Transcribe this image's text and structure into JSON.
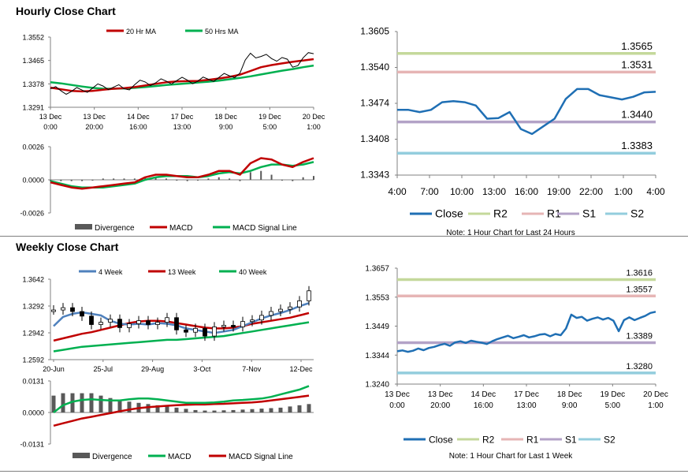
{
  "sections": {
    "hourly": {
      "title": "Hourly Close Chart"
    },
    "weekly": {
      "title": "Weekly Close Chart"
    }
  },
  "colors": {
    "close": "#1f6fb4",
    "r2": "#c4d89b",
    "r1": "#e6b5b5",
    "s1": "#b3a2c7",
    "s2": "#93cddd",
    "ma_short": "#c00000",
    "ma_long": "#00b050",
    "wk4": "#4f81bd",
    "divergence": "#595959"
  },
  "chart_data": [
    {
      "id": "hourly-price",
      "type": "line",
      "title": "",
      "ylim": [
        1.3291,
        1.3552
      ],
      "yticks": [
        "1.3552",
        "1.3465",
        "1.3378",
        "1.3291"
      ],
      "xticks": [
        [
          "13 Dec",
          "0:00"
        ],
        [
          "13 Dec",
          "20:00"
        ],
        [
          "14 Dec",
          "16:00"
        ],
        [
          "17 Dec",
          "13:00"
        ],
        [
          "18 Dec",
          "9:00"
        ],
        [
          "19 Dec",
          "5:00"
        ],
        [
          "20 Dec",
          "1:00"
        ]
      ],
      "legend": [
        "20 Hr MA",
        "50 Hrs MA"
      ],
      "series": [
        {
          "name": "20 Hr MA",
          "color": "#c00000",
          "values": [
            1.3364,
            1.3358,
            1.3352,
            1.335,
            1.3352,
            1.3356,
            1.336,
            1.3362,
            1.3366,
            1.3372,
            1.3378,
            1.3384,
            1.3387,
            1.3388,
            1.3389,
            1.3393,
            1.3398,
            1.3404,
            1.3412,
            1.3426,
            1.344,
            1.3448,
            1.3454,
            1.346,
            1.3465,
            1.347
          ]
        },
        {
          "name": "50 Hrs MA",
          "color": "#00b050",
          "values": [
            1.3384,
            1.338,
            1.3374,
            1.3368,
            1.3363,
            1.336,
            1.336,
            1.3361,
            1.3363,
            1.3366,
            1.337,
            1.3374,
            1.3377,
            1.338,
            1.3383,
            1.3386,
            1.339,
            1.3395,
            1.34,
            1.3406,
            1.3413,
            1.342,
            1.3427,
            1.3433,
            1.344,
            1.3446
          ]
        },
        {
          "name": "Close",
          "color": "#000000",
          "values": [
            1.336,
            1.3352,
            1.335,
            1.3355,
            1.3362,
            1.337,
            1.3366,
            1.336,
            1.3375,
            1.3385,
            1.3382,
            1.3388,
            1.339,
            1.3392,
            1.3388,
            1.3395,
            1.3402,
            1.3408,
            1.3418,
            1.3492,
            1.348,
            1.3472,
            1.3476,
            1.344,
            1.3475,
            1.349
          ]
        }
      ]
    },
    {
      "id": "hourly-macd",
      "type": "line",
      "ylim": [
        -0.0026,
        0.0026
      ],
      "yticks": [
        "0.0026",
        "0.0000",
        "-0.0026"
      ],
      "legend": [
        "Divergence",
        "MACD",
        "MACD Signal Line"
      ],
      "series": [
        {
          "name": "MACD",
          "color": "#c00000",
          "values": [
            -0.0002,
            -0.0004,
            -0.0006,
            -0.0007,
            -0.0006,
            -0.0005,
            -0.0004,
            -0.0003,
            -0.0002,
            0.0002,
            0.0004,
            0.0004,
            0.0003,
            0.0002,
            0.0002,
            0.0004,
            0.0007,
            0.0007,
            0.0004,
            0.0013,
            0.0017,
            0.0016,
            0.0012,
            0.001,
            0.0014,
            0.0017
          ]
        },
        {
          "name": "MACD Signal Line",
          "color": "#00b050",
          "values": [
            -0.0001,
            -0.0003,
            -0.0005,
            -0.0006,
            -0.0006,
            -0.0006,
            -0.0005,
            -0.0004,
            -0.0003,
            0.0,
            0.0002,
            0.0003,
            0.0003,
            0.0003,
            0.0002,
            0.0003,
            0.0005,
            0.0006,
            0.0005,
            0.0007,
            0.001,
            0.0012,
            0.0012,
            0.0011,
            0.0012,
            0.0014
          ]
        },
        {
          "name": "Divergence",
          "color": "#595959",
          "values": [
            -0.0001,
            -0.0001,
            -0.0001,
            -0.0001,
            0.0,
            0.0001,
            0.0001,
            0.0001,
            0.0001,
            0.0002,
            0.0002,
            0.0001,
            0.0,
            -0.0001,
            0.0,
            0.0001,
            0.0002,
            0.0001,
            -0.0001,
            0.0006,
            0.0007,
            0.0004,
            0.0,
            -0.0001,
            0.0002,
            0.0003
          ]
        }
      ]
    },
    {
      "id": "hourly-levels",
      "type": "line",
      "ylim": [
        1.3343,
        1.3605
      ],
      "yticks": [
        "1.3605",
        "1.3540",
        "1.3474",
        "1.3408",
        "1.3343"
      ],
      "xticks": [
        "4:00",
        "7:00",
        "10:00",
        "13:00",
        "16:00",
        "19:00",
        "22:00",
        "1:00",
        "4:00"
      ],
      "levels": [
        {
          "name": "R2",
          "value": 1.3565,
          "label": "1.3565",
          "color": "#c4d89b"
        },
        {
          "name": "R1",
          "value": 1.3531,
          "label": "1.3531",
          "color": "#e6b5b5"
        },
        {
          "name": "S1",
          "value": 1.344,
          "label": "1.3440",
          "color": "#b3a2c7"
        },
        {
          "name": "S2",
          "value": 1.3383,
          "label": "1.3383",
          "color": "#93cddd"
        }
      ],
      "series": [
        {
          "name": "Close",
          "color": "#1f6fb4",
          "values": [
            1.3462,
            1.3462,
            1.3458,
            1.3462,
            1.3476,
            1.3478,
            1.3476,
            1.347,
            1.3446,
            1.3447,
            1.3458,
            1.3427,
            1.3418,
            1.3432,
            1.3446,
            1.3482,
            1.35,
            1.35,
            1.3489,
            1.3485,
            1.3481,
            1.3486,
            1.3494,
            1.3495
          ]
        }
      ],
      "legend": [
        "Close",
        "R2",
        "R1",
        "S1",
        "S2"
      ],
      "note": "Note: 1 Hour Chart for Last 24 Hours"
    },
    {
      "id": "weekly-price",
      "type": "line",
      "ylim": [
        1.2592,
        1.3642
      ],
      "yticks": [
        "1.3642",
        "1.3292",
        "1.2942",
        "1.2592"
      ],
      "xticks": [
        "20-Jun",
        "25-Jul",
        "29-Aug",
        "3-Oct",
        "7-Nov",
        "12-Dec"
      ],
      "legend": [
        "4 Week",
        "13 Week",
        "40 Week"
      ],
      "series": [
        {
          "name": "4 Week",
          "color": "#4f81bd",
          "values": [
            1.303,
            1.315,
            1.319,
            1.321,
            1.319,
            1.317,
            1.31,
            1.306,
            1.305,
            1.306,
            1.305,
            1.307,
            1.306,
            1.304,
            1.3,
            1.298,
            1.296,
            1.294,
            1.296,
            1.298,
            1.303,
            1.308,
            1.313,
            1.317,
            1.32,
            1.324,
            1.329,
            1.333
          ]
        },
        {
          "name": "13 Week",
          "color": "#c00000",
          "values": [
            1.284,
            1.287,
            1.29,
            1.293,
            1.295,
            1.298,
            1.301,
            1.304,
            1.307,
            1.309,
            1.31,
            1.31,
            1.309,
            1.307,
            1.305,
            1.303,
            1.301,
            1.3,
            1.3,
            1.301,
            1.303,
            1.306,
            1.308,
            1.31,
            1.312,
            1.314,
            1.317,
            1.32
          ]
        },
        {
          "name": "40 Week",
          "color": "#00b050",
          "values": [
            1.27,
            1.272,
            1.274,
            1.276,
            1.277,
            1.278,
            1.279,
            1.28,
            1.281,
            1.282,
            1.283,
            1.284,
            1.285,
            1.285,
            1.286,
            1.287,
            1.288,
            1.289,
            1.29,
            1.292,
            1.294,
            1.296,
            1.298,
            1.3,
            1.302,
            1.304,
            1.306,
            1.308
          ]
        },
        {
          "name": "Close",
          "color": "#000000",
          "values": [
            1.324,
            1.327,
            1.322,
            1.316,
            1.305,
            1.308,
            1.312,
            1.301,
            1.306,
            1.31,
            1.305,
            1.308,
            1.314,
            1.298,
            1.295,
            1.3,
            1.29,
            1.302,
            1.304,
            1.302,
            1.309,
            1.311,
            1.317,
            1.322,
            1.325,
            1.328,
            1.336,
            1.349
          ]
        }
      ]
    },
    {
      "id": "weekly-macd",
      "type": "line",
      "ylim": [
        -0.0131,
        0.0131
      ],
      "yticks": [
        "0.0131",
        "0.0000",
        "-0.0131"
      ],
      "legend": [
        "Divergence",
        "MACD",
        "MACD Signal Line"
      ],
      "series": [
        {
          "name": "MACD",
          "color": "#00b050",
          "values": [
            0.0,
            0.003,
            0.0045,
            0.0052,
            0.0055,
            0.0052,
            0.005,
            0.005,
            0.0055,
            0.0058,
            0.0058,
            0.0055,
            0.005,
            0.0045,
            0.004,
            0.004,
            0.004,
            0.0042,
            0.0045,
            0.005,
            0.0052,
            0.0055,
            0.0058,
            0.0065,
            0.0075,
            0.0085,
            0.0095,
            0.011
          ]
        },
        {
          "name": "MACD Signal Line",
          "color": "#c00000",
          "values": [
            -0.0055,
            -0.0045,
            -0.0035,
            -0.0025,
            -0.0018,
            -0.001,
            -0.0003,
            0.0005,
            0.0012,
            0.0018,
            0.0022,
            0.0025,
            0.0028,
            0.003,
            0.0032,
            0.0033,
            0.0033,
            0.0035,
            0.0036,
            0.0038,
            0.004,
            0.0042,
            0.0045,
            0.005,
            0.0055,
            0.006,
            0.0065,
            0.007
          ]
        },
        {
          "name": "Divergence",
          "color": "#595959",
          "values": [
            0.007,
            0.008,
            0.008,
            0.008,
            0.008,
            0.007,
            0.006,
            0.005,
            0.0045,
            0.004,
            0.0035,
            0.003,
            0.0025,
            0.002,
            0.0015,
            0.001,
            0.0008,
            0.0008,
            0.0009,
            0.001,
            0.0012,
            0.0014,
            0.0016,
            0.0018,
            0.002,
            0.0025,
            0.003,
            0.0035
          ]
        }
      ]
    },
    {
      "id": "weekly-levels",
      "type": "line",
      "ylim": [
        1.324,
        1.3657
      ],
      "yticks": [
        "1.3657",
        "1.3553",
        "1.3449",
        "1.3344",
        "1.3240"
      ],
      "xticks": [
        [
          "13 Dec",
          "0:00"
        ],
        [
          "13 Dec",
          "20:00"
        ],
        [
          "14 Dec",
          "16:00"
        ],
        [
          "17 Dec",
          "13:00"
        ],
        [
          "18 Dec",
          "9:00"
        ],
        [
          "19 Dec",
          "5:00"
        ],
        [
          "20 Dec",
          "1:00"
        ]
      ],
      "levels": [
        {
          "name": "R2",
          "value": 1.3616,
          "label": "1.3616",
          "color": "#c4d89b"
        },
        {
          "name": "R1",
          "value": 1.3557,
          "label": "1.3557",
          "color": "#e6b5b5"
        },
        {
          "name": "S1",
          "value": 1.3389,
          "label": "1.3389",
          "color": "#b3a2c7"
        },
        {
          "name": "S2",
          "value": 1.328,
          "label": "1.3280",
          "color": "#93cddd"
        }
      ],
      "series": [
        {
          "name": "Close",
          "color": "#1f6fb4",
          "values": [
            1.3358,
            1.3361,
            1.3356,
            1.336,
            1.3368,
            1.3362,
            1.337,
            1.3374,
            1.338,
            1.3385,
            1.3378,
            1.339,
            1.3394,
            1.3388,
            1.3396,
            1.3392,
            1.3389,
            1.3384,
            1.3394,
            1.3402,
            1.3408,
            1.3414,
            1.3405,
            1.341,
            1.3416,
            1.3408,
            1.3412,
            1.3418,
            1.342,
            1.3412,
            1.342,
            1.3416,
            1.344,
            1.349,
            1.3478,
            1.3482,
            1.3468,
            1.3475,
            1.348,
            1.3472,
            1.3478,
            1.3468,
            1.343,
            1.347,
            1.348,
            1.347,
            1.3478,
            1.3485,
            1.3496,
            1.35
          ]
        }
      ],
      "legend": [
        "Close",
        "R2",
        "R1",
        "S1",
        "S2"
      ],
      "note": "Note: 1 Hour Chart for Last 1 Week"
    }
  ]
}
